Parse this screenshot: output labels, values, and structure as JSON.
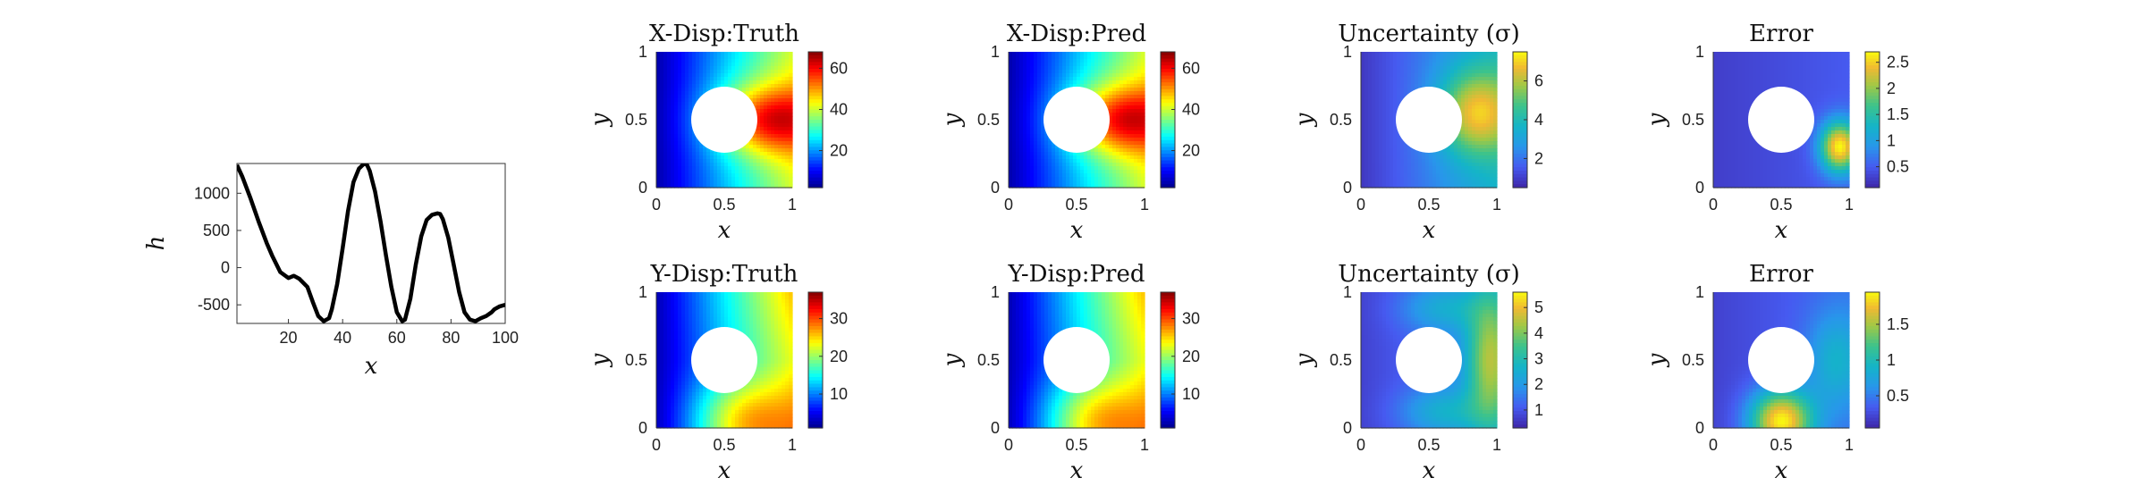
{
  "chart_data": [
    {
      "type": "line",
      "xlabel": "x",
      "ylabel": "h",
      "xlim": [
        1,
        100
      ],
      "ylim": [
        -750,
        1400
      ],
      "xticks": [
        "20",
        "40",
        "60",
        "80",
        "100"
      ],
      "yticks": [
        "-500",
        "0",
        "500",
        "1000"
      ],
      "series": [
        {
          "color": "#000000",
          "x": [
            1,
            3,
            6,
            9,
            12,
            14,
            17,
            20,
            22,
            24,
            27,
            29,
            31,
            33,
            35,
            36,
            38,
            40,
            42,
            44,
            46,
            48,
            49,
            50,
            52,
            54,
            56,
            58,
            60,
            62,
            63,
            65,
            67,
            69,
            71,
            73,
            75,
            76,
            77,
            79,
            81,
            83,
            85,
            87,
            89,
            91,
            93,
            95,
            96,
            98,
            100
          ],
          "y": [
            1380,
            1220,
            930,
            620,
            330,
            160,
            -60,
            -140,
            -110,
            -150,
            -260,
            -460,
            -650,
            -720,
            -680,
            -560,
            -220,
            260,
            760,
            1150,
            1330,
            1400,
            1380,
            1300,
            1020,
            620,
            160,
            -260,
            -600,
            -720,
            -700,
            -420,
            40,
            420,
            640,
            710,
            730,
            720,
            650,
            400,
            40,
            -330,
            -600,
            -700,
            -720,
            -680,
            -650,
            -600,
            -560,
            -520,
            -500
          ]
        }
      ]
    },
    {
      "type": "heatmap",
      "title": "X-Disp:Truth",
      "xlabel": "x",
      "ylabel": "y",
      "xticks": [
        "0",
        "0.5",
        "1"
      ],
      "yticks": [
        "0",
        "0.5",
        "1"
      ],
      "colormap": "jet",
      "field": "xdisp",
      "clim": [
        2,
        68
      ],
      "colorbar_ticks": [
        "20",
        "40",
        "60"
      ],
      "colorbar_values": [
        20,
        40,
        60
      ]
    },
    {
      "type": "heatmap",
      "title": "X-Disp:Pred",
      "xlabel": "x",
      "ylabel": "y",
      "xticks": [
        "0",
        "0.5",
        "1"
      ],
      "yticks": [
        "0",
        "0.5",
        "1"
      ],
      "colormap": "jet",
      "field": "xdisp",
      "clim": [
        2,
        68
      ],
      "colorbar_ticks": [
        "20",
        "40",
        "60"
      ],
      "colorbar_values": [
        20,
        40,
        60
      ]
    },
    {
      "type": "heatmap",
      "title": "Uncertainty (σ)",
      "xlabel": "x",
      "ylabel": "y",
      "xticks": [
        "0",
        "0.5",
        "1"
      ],
      "yticks": [
        "0",
        "0.5",
        "1"
      ],
      "colormap": "parula",
      "field": "xunc",
      "clim": [
        0.5,
        7.5
      ],
      "colorbar_ticks": [
        "2",
        "4",
        "6"
      ],
      "colorbar_values": [
        2,
        4,
        6
      ]
    },
    {
      "type": "heatmap",
      "title": "Error",
      "xlabel": "x",
      "ylabel": "y",
      "xticks": [
        "0",
        "0.5",
        "1"
      ],
      "yticks": [
        "0",
        "0.5",
        "1"
      ],
      "colormap": "parula",
      "field": "xerr",
      "clim": [
        0.1,
        2.7
      ],
      "colorbar_ticks": [
        "0.5",
        "1",
        "1.5",
        "2",
        "2.5"
      ],
      "colorbar_values": [
        0.5,
        1,
        1.5,
        2,
        2.5
      ]
    },
    {
      "type": "heatmap",
      "title": "Y-Disp:Truth",
      "xlabel": "x",
      "ylabel": "y",
      "xticks": [
        "0",
        "0.5",
        "1"
      ],
      "yticks": [
        "0",
        "0.5",
        "1"
      ],
      "colormap": "jet",
      "field": "ydisp",
      "clim": [
        1,
        37
      ],
      "colorbar_ticks": [
        "10",
        "20",
        "30"
      ],
      "colorbar_values": [
        10,
        20,
        30
      ]
    },
    {
      "type": "heatmap",
      "title": "Y-Disp:Pred",
      "xlabel": "x",
      "ylabel": "y",
      "xticks": [
        "0",
        "0.5",
        "1"
      ],
      "yticks": [
        "0",
        "0.5",
        "1"
      ],
      "colormap": "jet",
      "field": "ydisp",
      "clim": [
        1,
        37
      ],
      "colorbar_ticks": [
        "10",
        "20",
        "30"
      ],
      "colorbar_values": [
        10,
        20,
        30
      ]
    },
    {
      "type": "heatmap",
      "title": "Uncertainty (σ)",
      "xlabel": "x",
      "ylabel": "y",
      "xticks": [
        "0",
        "0.5",
        "1"
      ],
      "yticks": [
        "0",
        "0.5",
        "1"
      ],
      "colormap": "parula",
      "field": "yunc",
      "clim": [
        0.3,
        5.6
      ],
      "colorbar_ticks": [
        "1",
        "2",
        "3",
        "4",
        "5"
      ],
      "colorbar_values": [
        1,
        2,
        3,
        4,
        5
      ]
    },
    {
      "type": "heatmap",
      "title": "Error",
      "xlabel": "x",
      "ylabel": "y",
      "xticks": [
        "0",
        "0.5",
        "1"
      ],
      "yticks": [
        "0",
        "0.5",
        "1"
      ],
      "colormap": "parula",
      "field": "yerr",
      "clim": [
        0.05,
        1.95
      ],
      "colorbar_ticks": [
        "0.5",
        "1",
        "1.5"
      ],
      "colorbar_values": [
        0.5,
        1,
        1.5
      ]
    }
  ]
}
